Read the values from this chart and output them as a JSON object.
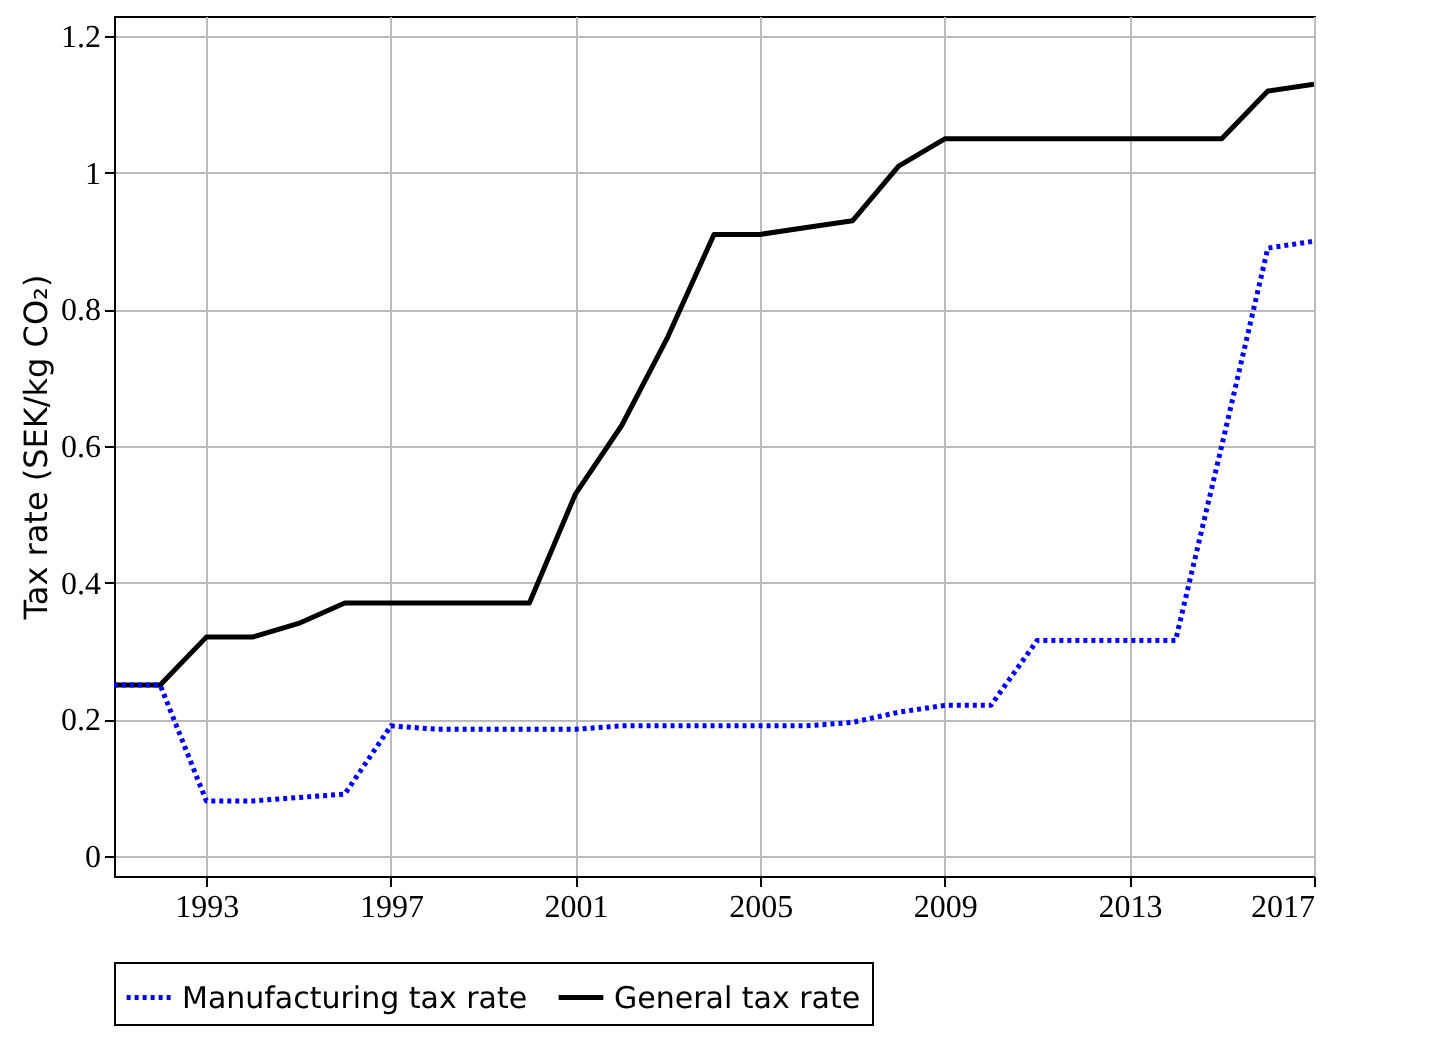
{
  "chart_data": {
    "type": "line",
    "ylabel": "Tax rate (SEK/kg CO₂)",
    "x": [
      1991,
      1992,
      1993,
      1994,
      1995,
      1996,
      1997,
      1998,
      1999,
      2000,
      2001,
      2002,
      2003,
      2004,
      2005,
      2006,
      2007,
      2008,
      2009,
      2010,
      2011,
      2012,
      2013,
      2014,
      2015,
      2016,
      2017
    ],
    "series": [
      {
        "name": "Manufacturing tax rate",
        "color": "#0000ff",
        "line_style": "dotted",
        "values": [
          0.25,
          0.25,
          0.08,
          0.08,
          0.085,
          0.09,
          0.19,
          0.185,
          0.185,
          0.185,
          0.185,
          0.19,
          0.19,
          0.19,
          0.19,
          0.19,
          0.195,
          0.21,
          0.22,
          0.22,
          0.315,
          0.315,
          0.315,
          0.315,
          0.6,
          0.89,
          0.9
        ]
      },
      {
        "name": "General tax rate",
        "color": "#000000",
        "line_style": "solid",
        "values": [
          0.25,
          0.25,
          0.32,
          0.32,
          0.34,
          0.37,
          0.37,
          0.37,
          0.37,
          0.37,
          0.53,
          0.63,
          0.76,
          0.91,
          0.91,
          0.92,
          0.93,
          1.01,
          1.05,
          1.05,
          1.05,
          1.05,
          1.05,
          1.05,
          1.05,
          1.12,
          1.13
        ]
      }
    ],
    "xlim": [
      1991,
      2017
    ],
    "xticks": [
      1993,
      1997,
      2001,
      2005,
      2009,
      2013,
      2017
    ],
    "ylim": [
      -0.03,
      1.23
    ],
    "yticks": [
      0,
      0.2,
      0.4,
      0.6,
      0.8,
      1,
      1.2
    ],
    "grid": true,
    "legend": "bottom"
  }
}
